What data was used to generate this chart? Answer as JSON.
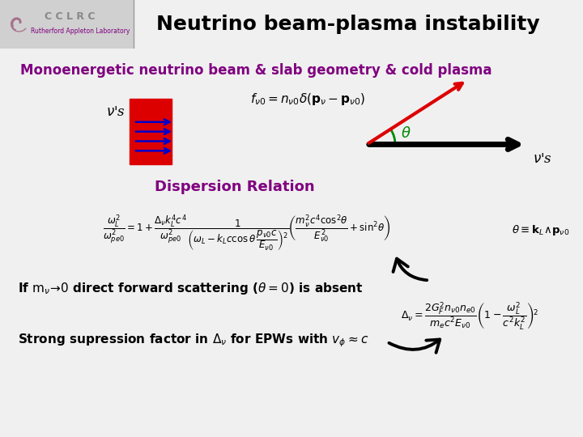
{
  "title": "Neutrino beam-plasma instability",
  "title_fontsize": 18,
  "subtitle": "Monoenergetic neutrino beam & slab geometry & cold plasma",
  "subtitle_color": "#800080",
  "subtitle_fontsize": 12,
  "header_bg": "#b8b8b8",
  "body_bg": "#f0f0f0",
  "dispersion_label": "Dispersion Relation",
  "dispersion_color": "#800080",
  "dispersion_fontsize": 13,
  "footer_color": "#800080",
  "text1_fontsize": 11,
  "text2_fontsize": 11,
  "logo_text1": "C C L R C",
  "logo_text2": "Rutherford Appleton Laboratory",
  "logo_color1": "#888888",
  "logo_color2": "#800080"
}
